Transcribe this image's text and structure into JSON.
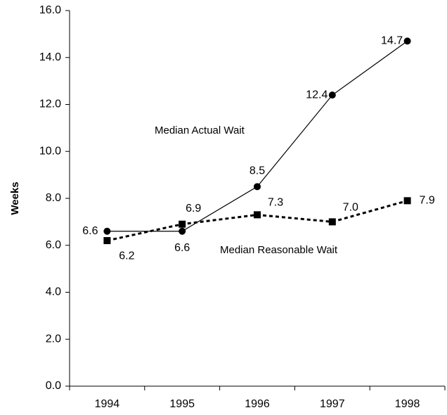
{
  "chart_data": {
    "type": "line",
    "y_label": "Weeks",
    "categories": [
      "1994",
      "1995",
      "1996",
      "1997",
      "1998"
    ],
    "series": [
      {
        "name": "Median Actual Wait",
        "color": "#000000",
        "marker": "circle",
        "dash": "solid",
        "values": [
          6.6,
          6.6,
          8.5,
          12.4,
          14.7
        ],
        "value_labels": [
          "6.6",
          "6.6",
          "8.5",
          "12.4",
          "14.7"
        ]
      },
      {
        "name": "Median Reasonable Wait",
        "color": "#000000",
        "marker": "square",
        "dash": "dotted",
        "values": [
          6.2,
          6.9,
          7.3,
          7.0,
          7.9
        ],
        "value_labels": [
          "6.2",
          "6.9",
          "7.3",
          "7.0",
          "7.9"
        ]
      }
    ],
    "ylim": [
      0,
      16
    ],
    "yticks": [
      {
        "value": 0,
        "label": "0.0"
      },
      {
        "value": 2,
        "label": "2.0"
      },
      {
        "value": 4,
        "label": "4.0"
      },
      {
        "value": 6,
        "label": "6.0"
      },
      {
        "value": 8,
        "label": "8.0"
      },
      {
        "value": 10,
        "label": "10.0"
      },
      {
        "value": 12,
        "label": "12.0"
      },
      {
        "value": 14,
        "label": "14.0"
      },
      {
        "value": 16,
        "label": "16.0"
      }
    ],
    "grid": false
  }
}
